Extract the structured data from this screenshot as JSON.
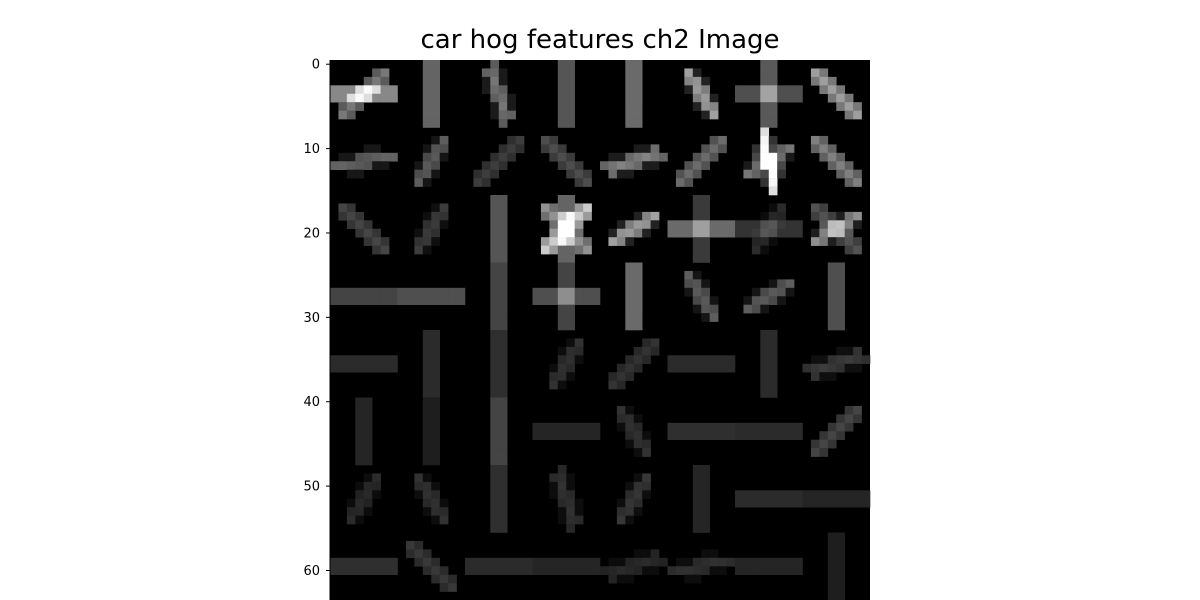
{
  "chart_data": {
    "type": "heatmap",
    "title": "car hog features ch2 Image",
    "colormap": "gray",
    "rows": 64,
    "cols": 64,
    "cells_per_side": 8,
    "cell_size": 8,
    "y_ticks": [
      0,
      10,
      20,
      30,
      40,
      50,
      60
    ],
    "y_tick_labels": [
      "0",
      "10",
      "20",
      "30",
      "40",
      "50",
      "60"
    ],
    "ylim": [
      64,
      0
    ],
    "xlim": [
      0,
      64
    ],
    "cell_orientations": [
      [
        [
          {
            "angle": 0,
            "strength": 0.62
          },
          {
            "angle": 45,
            "strength": 0.45
          }
        ],
        [
          {
            "angle": 90,
            "strength": 0.45
          }
        ],
        [
          {
            "angle": 110,
            "strength": 0.45
          }
        ],
        [
          {
            "angle": 90,
            "strength": 0.38
          }
        ],
        [
          {
            "angle": 90,
            "strength": 0.48
          }
        ],
        [
          {
            "angle": 120,
            "strength": 0.62
          }
        ],
        [
          {
            "angle": 0,
            "strength": 0.35
          },
          {
            "angle": 90,
            "strength": 0.4
          }
        ],
        [
          {
            "angle": 135,
            "strength": 0.6
          }
        ]
      ],
      [
        [
          {
            "angle": 10,
            "strength": 0.38
          }
        ],
        [
          {
            "angle": 60,
            "strength": 0.35
          }
        ],
        [
          {
            "angle": 45,
            "strength": 0.22
          }
        ],
        [
          {
            "angle": 135,
            "strength": 0.28
          }
        ],
        [
          {
            "angle": 20,
            "strength": 0.5
          }
        ],
        [
          {
            "angle": 45,
            "strength": 0.4
          }
        ],
        [
          {
            "angle": 105,
            "strength": 1.0
          },
          {
            "angle": 30,
            "strength": 0.45
          }
        ],
        [
          {
            "angle": 135,
            "strength": 0.48
          }
        ]
      ],
      [
        [
          {
            "angle": 135,
            "strength": 0.25
          }
        ],
        [
          {
            "angle": 60,
            "strength": 0.22
          }
        ],
        [
          {
            "angle": 90,
            "strength": 0.38
          }
        ],
        [
          {
            "angle": 45,
            "strength": 0.78
          },
          {
            "angle": 135,
            "strength": 0.55
          },
          {
            "angle": 90,
            "strength": 0.45
          }
        ],
        [
          {
            "angle": 30,
            "strength": 0.62
          }
        ],
        [
          {
            "angle": 0,
            "strength": 0.48
          },
          {
            "angle": 90,
            "strength": 0.25
          }
        ],
        [
          {
            "angle": 0,
            "strength": 0.22
          },
          {
            "angle": 60,
            "strength": 0.15
          }
        ],
        [
          {
            "angle": 30,
            "strength": 0.55
          },
          {
            "angle": 135,
            "strength": 0.3
          }
        ]
      ],
      [
        [
          {
            "angle": 0,
            "strength": 0.3
          }
        ],
        [
          {
            "angle": 0,
            "strength": 0.35
          }
        ],
        [
          {
            "angle": 90,
            "strength": 0.3
          }
        ],
        [
          {
            "angle": 0,
            "strength": 0.35
          },
          {
            "angle": 90,
            "strength": 0.3
          }
        ],
        [
          {
            "angle": 90,
            "strength": 0.48
          }
        ],
        [
          {
            "angle": 120,
            "strength": 0.35
          }
        ],
        [
          {
            "angle": 30,
            "strength": 0.35
          }
        ],
        [
          {
            "angle": 90,
            "strength": 0.35
          }
        ]
      ],
      [
        [
          {
            "angle": 0,
            "strength": 0.18
          }
        ],
        [
          {
            "angle": 90,
            "strength": 0.18
          }
        ],
        [
          {
            "angle": 90,
            "strength": 0.2
          }
        ],
        [
          {
            "angle": 60,
            "strength": 0.18
          }
        ],
        [
          {
            "angle": 45,
            "strength": 0.18
          }
        ],
        [
          {
            "angle": 0,
            "strength": 0.18
          }
        ],
        [
          {
            "angle": 90,
            "strength": 0.18
          }
        ],
        [
          {
            "angle": 20,
            "strength": 0.22
          }
        ]
      ],
      [
        [
          {
            "angle": 90,
            "strength": 0.15
          }
        ],
        [
          {
            "angle": 90,
            "strength": 0.12
          }
        ],
        [
          {
            "angle": 90,
            "strength": 0.3
          }
        ],
        [
          {
            "angle": 0,
            "strength": 0.15
          }
        ],
        [
          {
            "angle": 120,
            "strength": 0.18
          }
        ],
        [
          {
            "angle": 0,
            "strength": 0.2
          }
        ],
        [
          {
            "angle": 0,
            "strength": 0.18
          }
        ],
        [
          {
            "angle": 45,
            "strength": 0.25
          }
        ]
      ],
      [
        [
          {
            "angle": 60,
            "strength": 0.15
          }
        ],
        [
          {
            "angle": 120,
            "strength": 0.18
          }
        ],
        [
          {
            "angle": 90,
            "strength": 0.2
          }
        ],
        [
          {
            "angle": 110,
            "strength": 0.18
          }
        ],
        [
          {
            "angle": 60,
            "strength": 0.2
          }
        ],
        [
          {
            "angle": 90,
            "strength": 0.15
          }
        ],
        [
          {
            "angle": 0,
            "strength": 0.18
          }
        ],
        [
          {
            "angle": 0,
            "strength": 0.15
          }
        ]
      ],
      [
        [
          {
            "angle": 0,
            "strength": 0.2
          }
        ],
        [
          {
            "angle": 135,
            "strength": 0.2
          }
        ],
        [
          {
            "angle": 0,
            "strength": 0.18
          }
        ],
        [
          {
            "angle": 0,
            "strength": 0.15
          }
        ],
        [
          {
            "angle": 20,
            "strength": 0.15
          }
        ],
        [
          {
            "angle": 15,
            "strength": 0.18
          }
        ],
        [
          {
            "angle": 0,
            "strength": 0.15
          }
        ],
        [
          {
            "angle": 90,
            "strength": 0.12
          }
        ]
      ]
    ]
  }
}
